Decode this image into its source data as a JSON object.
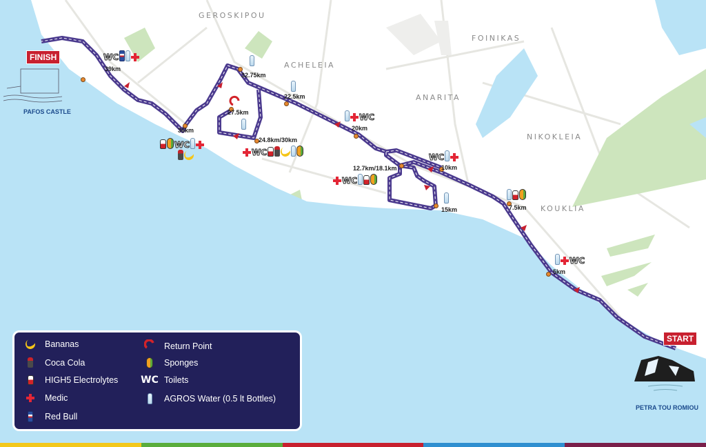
{
  "places": [
    "GEROSKIPOU",
    "ACHELEIA",
    "FOINIKAS",
    "ANARITA",
    "NIKOKLEIA",
    "KOUKLIA"
  ],
  "landmarks": {
    "finish": "PAFOS CASTLE",
    "start": "PETRA TOU ROMIOU"
  },
  "badges": {
    "finish": "FINISH",
    "start": "START"
  },
  "wc_text": "WC",
  "stations": [
    {
      "km": "39km",
      "items": [
        "wc",
        "redbull",
        "water",
        "medic"
      ]
    },
    {
      "km": "32.75km",
      "items": [
        "water"
      ]
    },
    {
      "km": "22.5km",
      "items": [
        "water"
      ]
    },
    {
      "km": "36km",
      "items": [
        "elec",
        "sponge",
        "wc",
        "water",
        "medic"
      ],
      "items2": [
        "cola",
        "banana"
      ]
    },
    {
      "km": "27.5km",
      "items": [
        "water"
      ]
    },
    {
      "km": "24.8km/30km",
      "items": [
        "medic",
        "wc",
        "elec",
        "cola",
        "banana",
        "water",
        "sponge"
      ]
    },
    {
      "km": "20km",
      "items": [
        "water",
        "medic",
        "wc"
      ]
    },
    {
      "km": "12.7km/18.1km",
      "items": [
        "medic",
        "wc",
        "water",
        "elec",
        "sponge"
      ]
    },
    {
      "km": "10km",
      "items": [
        "wc",
        "water",
        "medic"
      ]
    },
    {
      "km": "15km",
      "items": [
        "water"
      ]
    },
    {
      "km": "7.5km",
      "items": [
        "water",
        "elec",
        "sponge"
      ]
    },
    {
      "km": "5km",
      "items": [
        "water",
        "medic",
        "wc"
      ]
    }
  ],
  "legend": [
    {
      "icon": "banana",
      "label": "Bananas"
    },
    {
      "icon": "cola",
      "label": "Coca Cola"
    },
    {
      "icon": "elec",
      "label": "HIGH5 Electrolytes"
    },
    {
      "icon": "medic",
      "label": "Medic"
    },
    {
      "icon": "redbull",
      "label": "Red Bull"
    },
    {
      "icon": "return",
      "label": "Return Point"
    },
    {
      "icon": "sponge",
      "label": "Sponges"
    },
    {
      "icon": "wc",
      "label": "Toilets"
    },
    {
      "icon": "water",
      "label": "AGROS Water (0.5 lt Bottles)"
    }
  ],
  "colors": {
    "sea": "#b9e3f6",
    "land": "#ffffff",
    "park": "#cde5bd",
    "route": "#4b3a8e",
    "marker": "#e8892f",
    "badge": "#c8202f",
    "legend_bg": "#22205a",
    "strip": [
      "#f3c81b",
      "#5aad3c",
      "#c8202f",
      "#2f8fd0",
      "#7a1f4a"
    ]
  }
}
